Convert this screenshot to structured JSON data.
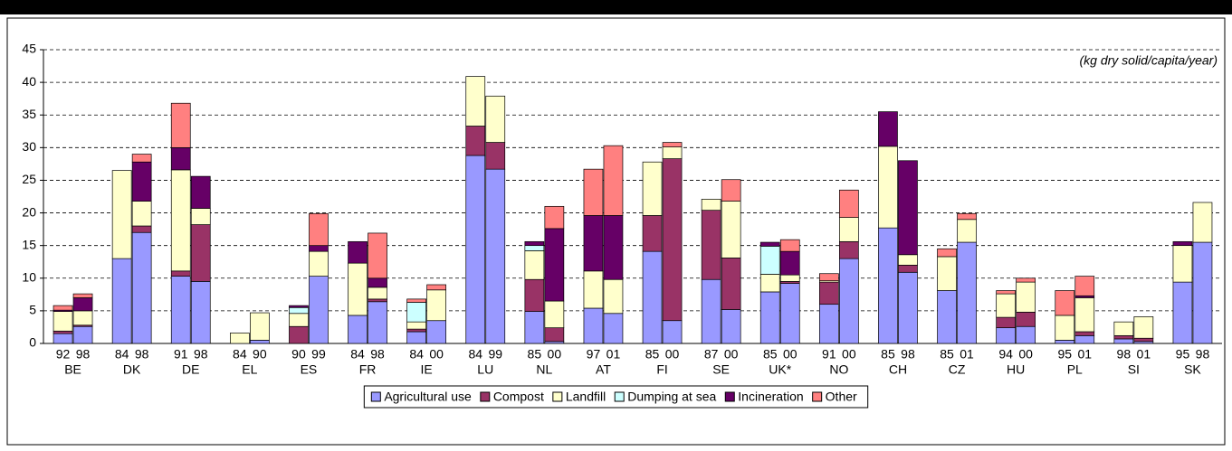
{
  "chart_data": {
    "type": "stacked-bar",
    "annotation": "(kg dry solid/capita/year)",
    "groups": [
      "BE",
      "DK",
      "DE",
      "EL",
      "ES",
      "FR",
      "IE",
      "LU",
      "NL",
      "AT",
      "FI",
      "SE",
      "UK*",
      "NO",
      "CH",
      "CZ",
      "HU",
      "PL",
      "SI",
      "SK"
    ],
    "categories": [
      "92",
      "98",
      "84",
      "98",
      "91",
      "98",
      "84",
      "90",
      "90",
      "99",
      "84",
      "98",
      "84",
      "00",
      "84",
      "99",
      "85",
      "00",
      "97",
      "01",
      "85",
      "00",
      "87",
      "00",
      "85",
      "00",
      "91",
      "00",
      "85",
      "98",
      "85",
      "01",
      "94",
      "00",
      "95",
      "01",
      "98",
      "01",
      "95",
      "98"
    ],
    "ylim": [
      0,
      45
    ],
    "yticks": [
      0,
      5,
      10,
      15,
      20,
      25,
      30,
      35,
      40,
      45
    ],
    "grid": true,
    "legend": "bottom",
    "series": [
      {
        "name": "Agricultural use",
        "color": "#9999ff",
        "values": [
          1.5,
          2.6,
          13,
          17,
          10.3,
          9.5,
          0,
          0.5,
          0,
          10.3,
          4.3,
          6.4,
          1.8,
          3.5,
          28.8,
          26.7,
          4.9,
          0.3,
          5.4,
          4.6,
          14.1,
          3.5,
          9.8,
          5.2,
          7.9,
          9.2,
          6,
          13,
          17.7,
          10.9,
          8.1,
          15.5,
          2.4,
          2.6,
          0.5,
          1.2,
          0.7,
          0.3,
          9.4,
          15.5
        ]
      },
      {
        "name": "Compost",
        "color": "#993366",
        "values": [
          0.4,
          0.2,
          0,
          1,
          0.8,
          8.7,
          0,
          0,
          2.6,
          0,
          0,
          0.4,
          0.4,
          0,
          4.5,
          4.1,
          4.9,
          2.1,
          0,
          0,
          5.5,
          24.8,
          10.6,
          7.9,
          0,
          0.3,
          3.4,
          2.6,
          0,
          1.1,
          0,
          0,
          1.6,
          2.2,
          0,
          0.6,
          0.5,
          0.5,
          0,
          0
        ]
      },
      {
        "name": "Landfill",
        "color": "#ffffcc",
        "values": [
          3,
          2.2,
          13.5,
          3.8,
          15.5,
          2.5,
          1.6,
          4.2,
          2,
          3.8,
          8,
          1.8,
          1.1,
          4.7,
          7.6,
          7.1,
          4.4,
          4.1,
          5.7,
          5.2,
          8.2,
          1.8,
          1.7,
          8.7,
          2.7,
          1,
          0.2,
          3.7,
          12.5,
          1.6,
          5.2,
          3.5,
          3.6,
          4.6,
          3.8,
          5.2,
          2.1,
          3.3,
          5.6,
          6.1
        ]
      },
      {
        "name": "Dumping at sea",
        "color": "#ccffff",
        "values": [
          0,
          0,
          0,
          0,
          0,
          0,
          0,
          0,
          0.9,
          0,
          0,
          0,
          3,
          0,
          0,
          0,
          0.8,
          0,
          0,
          0,
          0,
          0,
          0,
          0,
          4.3,
          0,
          0,
          0,
          0,
          0,
          0,
          0,
          0,
          0,
          0,
          0,
          0,
          0,
          0,
          0
        ]
      },
      {
        "name": "Incineration",
        "color": "#660066",
        "values": [
          0.2,
          2,
          0,
          6,
          3.4,
          4.9,
          0,
          0,
          0.3,
          0.9,
          3.3,
          1.4,
          0,
          0,
          0,
          0,
          0.6,
          11.1,
          8.5,
          9.8,
          0,
          0,
          0,
          0,
          0.6,
          3.6,
          0,
          0,
          5.3,
          14.4,
          0,
          0,
          0,
          0,
          0,
          0.3,
          0,
          0,
          0.6,
          0
        ]
      },
      {
        "name": "Other",
        "color": "#ff8080",
        "values": [
          0.7,
          0.6,
          0,
          1.2,
          6.8,
          0,
          0,
          0,
          0,
          4.9,
          0,
          6.9,
          0.5,
          0.8,
          0,
          0,
          0,
          3.4,
          7.1,
          10.7,
          0,
          0.7,
          0,
          3.3,
          0,
          1.8,
          1.1,
          4.2,
          0,
          0,
          1.2,
          0.9,
          0.5,
          0.6,
          3.8,
          3,
          0,
          0,
          0,
          0
        ]
      }
    ]
  }
}
